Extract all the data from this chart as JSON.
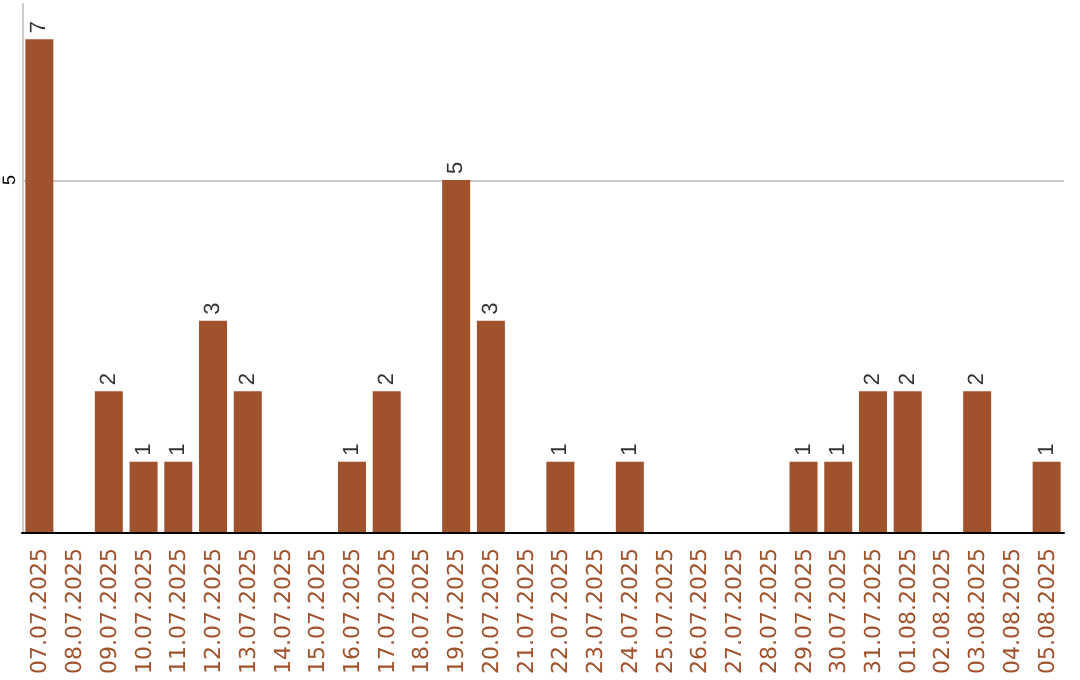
{
  "chart_data": {
    "type": "bar",
    "categories": [
      "07.07.2025",
      "08.07.2025",
      "09.07.2025",
      "10.07.2025",
      "11.07.2025",
      "12.07.2025",
      "13.07.2025",
      "14.07.2025",
      "15.07.2025",
      "16.07.2025",
      "17.07.2025",
      "18.07.2025",
      "19.07.2025",
      "20.07.2025",
      "21.07.2025",
      "22.07.2025",
      "23.07.2025",
      "24.07.2025",
      "25.07.2025",
      "26.07.2025",
      "27.07.2025",
      "28.07.2025",
      "29.07.2025",
      "30.07.2025",
      "31.07.2025",
      "01.08.2025",
      "02.08.2025",
      "03.08.2025",
      "04.08.2025",
      "05.08.2025"
    ],
    "values": [
      7,
      0,
      2,
      1,
      1,
      3,
      2,
      0,
      0,
      1,
      2,
      0,
      5,
      3,
      0,
      1,
      0,
      1,
      0,
      0,
      0,
      0,
      1,
      1,
      2,
      2,
      0,
      2,
      0,
      1
    ],
    "value_labels": [
      "7",
      null,
      "2",
      "1",
      "1",
      "3",
      "2",
      null,
      null,
      "1",
      "2",
      null,
      "5",
      "3",
      null,
      "1",
      null,
      "1",
      null,
      null,
      null,
      null,
      "1",
      "1",
      "2",
      "2",
      null,
      "2",
      null,
      "1"
    ],
    "color": "#a0522d",
    "ylim": [
      0,
      7.5
    ],
    "yticks": [
      5
    ],
    "grid": "y"
  }
}
